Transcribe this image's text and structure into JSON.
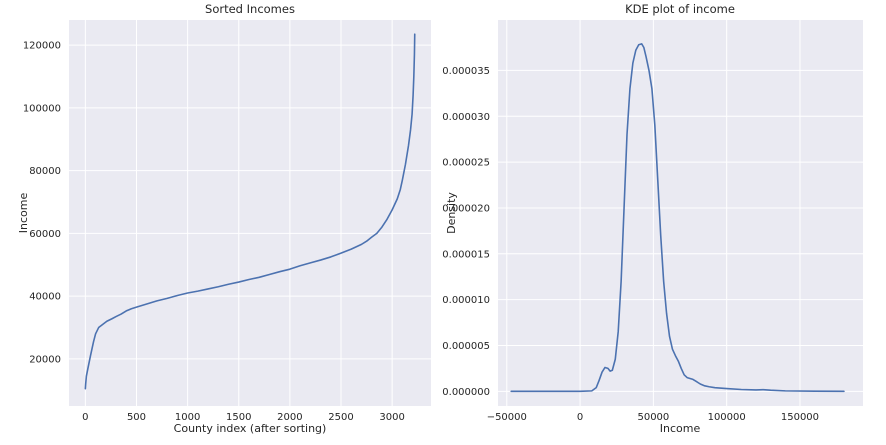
{
  "colors": {
    "plot_background": "#eaeaf2",
    "grid": "#ffffff",
    "series": "#4c72b0",
    "text": "#262626"
  },
  "chart_data": [
    {
      "type": "line",
      "title": "Sorted Incomes",
      "xlabel": "County index (after sorting)",
      "ylabel": "Income",
      "xlim": [
        -160,
        3380
      ],
      "ylim": [
        5000,
        128000
      ],
      "grid": true,
      "legend": "none",
      "xticks": [
        0,
        500,
        1000,
        1500,
        2000,
        2500,
        3000
      ],
      "yticks": [
        20000,
        40000,
        60000,
        80000,
        100000,
        120000
      ],
      "xtick_labels": [
        "0",
        "500",
        "1000",
        "1500",
        "2000",
        "2500",
        "3000"
      ],
      "ytick_labels": [
        "20000",
        "40000",
        "60000",
        "80000",
        "100000",
        "120000"
      ],
      "series": [
        {
          "x": [
            0,
            3,
            10,
            25,
            50,
            80,
            100,
            130,
            170,
            210,
            260,
            300,
            350,
            400,
            450,
            500,
            600,
            700,
            800,
            900,
            1000,
            1100,
            1200,
            1300,
            1400,
            1500,
            1600,
            1700,
            1800,
            1900,
            2000,
            2100,
            2200,
            2300,
            2400,
            2500,
            2600,
            2700,
            2750,
            2800,
            2850,
            2900,
            2950,
            3000,
            3050,
            3080,
            3100,
            3130,
            3160,
            3180,
            3195,
            3205,
            3212,
            3218,
            3221
          ],
          "y": [
            10500,
            12000,
            14500,
            17000,
            21000,
            25500,
            28000,
            30000,
            31000,
            32000,
            32800,
            33500,
            34300,
            35300,
            36000,
            36500,
            37500,
            38500,
            39300,
            40200,
            41000,
            41600,
            42300,
            43000,
            43800,
            44500,
            45300,
            46000,
            46900,
            47800,
            48600,
            49700,
            50600,
            51500,
            52500,
            53700,
            55000,
            56500,
            57500,
            58800,
            60000,
            62000,
            64500,
            67500,
            71000,
            74000,
            77000,
            82000,
            88000,
            93000,
            98000,
            104000,
            110000,
            117000,
            123500
          ]
        }
      ]
    },
    {
      "type": "line",
      "title": "KDE plot of income",
      "xlabel": "Income",
      "ylabel": "Density",
      "xlim": [
        -56000,
        193000
      ],
      "ylim": [
        -1.6e-06,
        4.05e-05
      ],
      "grid": true,
      "legend": "none",
      "xticks": [
        -50000,
        0,
        50000,
        100000,
        150000
      ],
      "yticks": [
        0,
        5e-06,
        1e-05,
        1.5e-05,
        2e-05,
        2.5e-05,
        3e-05,
        3.5e-05
      ],
      "xtick_labels": [
        "−50000",
        "0",
        "50000",
        "100000",
        "150000"
      ],
      "ytick_labels": [
        "0.000000",
        "0.000005",
        "0.000010",
        "0.000015",
        "0.000020",
        "0.000025",
        "0.000030",
        "0.000035"
      ],
      "series": [
        {
          "x": [
            -47000,
            -20000,
            0,
            8000,
            11000,
            13000,
            15000,
            17000,
            19000,
            20500,
            22000,
            24000,
            26000,
            28000,
            30000,
            32000,
            34000,
            36000,
            38000,
            40000,
            42000,
            43500,
            45000,
            47000,
            49000,
            51000,
            53000,
            55000,
            57000,
            59000,
            61000,
            63000,
            65000,
            67000,
            69000,
            71000,
            73000,
            75000,
            77000,
            79000,
            82000,
            85000,
            88000,
            92000,
            100000,
            110000,
            120000,
            125000,
            130000,
            140000,
            160000,
            180000
          ],
          "y": [
            0,
            0,
            0,
            5e-08,
            4e-07,
            1.2e-06,
            2.1e-06,
            2.6e-06,
            2.5e-06,
            2.2e-06,
            2.3e-06,
            3.5e-06,
            6.5e-06,
            1.2e-05,
            2e-05,
            2.8e-05,
            3.3e-05,
            3.58e-05,
            3.72e-05,
            3.78e-05,
            3.79e-05,
            3.75e-05,
            3.65e-05,
            3.5e-05,
            3.3e-05,
            2.9e-05,
            2.3e-05,
            1.7e-05,
            1.2e-05,
            8.5e-06,
            6e-06,
            4.6e-06,
            3.9e-06,
            3.3e-06,
            2.5e-06,
            1.8e-06,
            1.5e-06,
            1.4e-06,
            1.3e-06,
            1.1e-06,
            8e-07,
            6e-07,
            5e-07,
            4e-07,
            3e-07,
            2e-07,
            1.5e-07,
            1.8e-07,
            1.2e-07,
            5e-08,
            2e-08,
            0
          ]
        }
      ]
    }
  ]
}
